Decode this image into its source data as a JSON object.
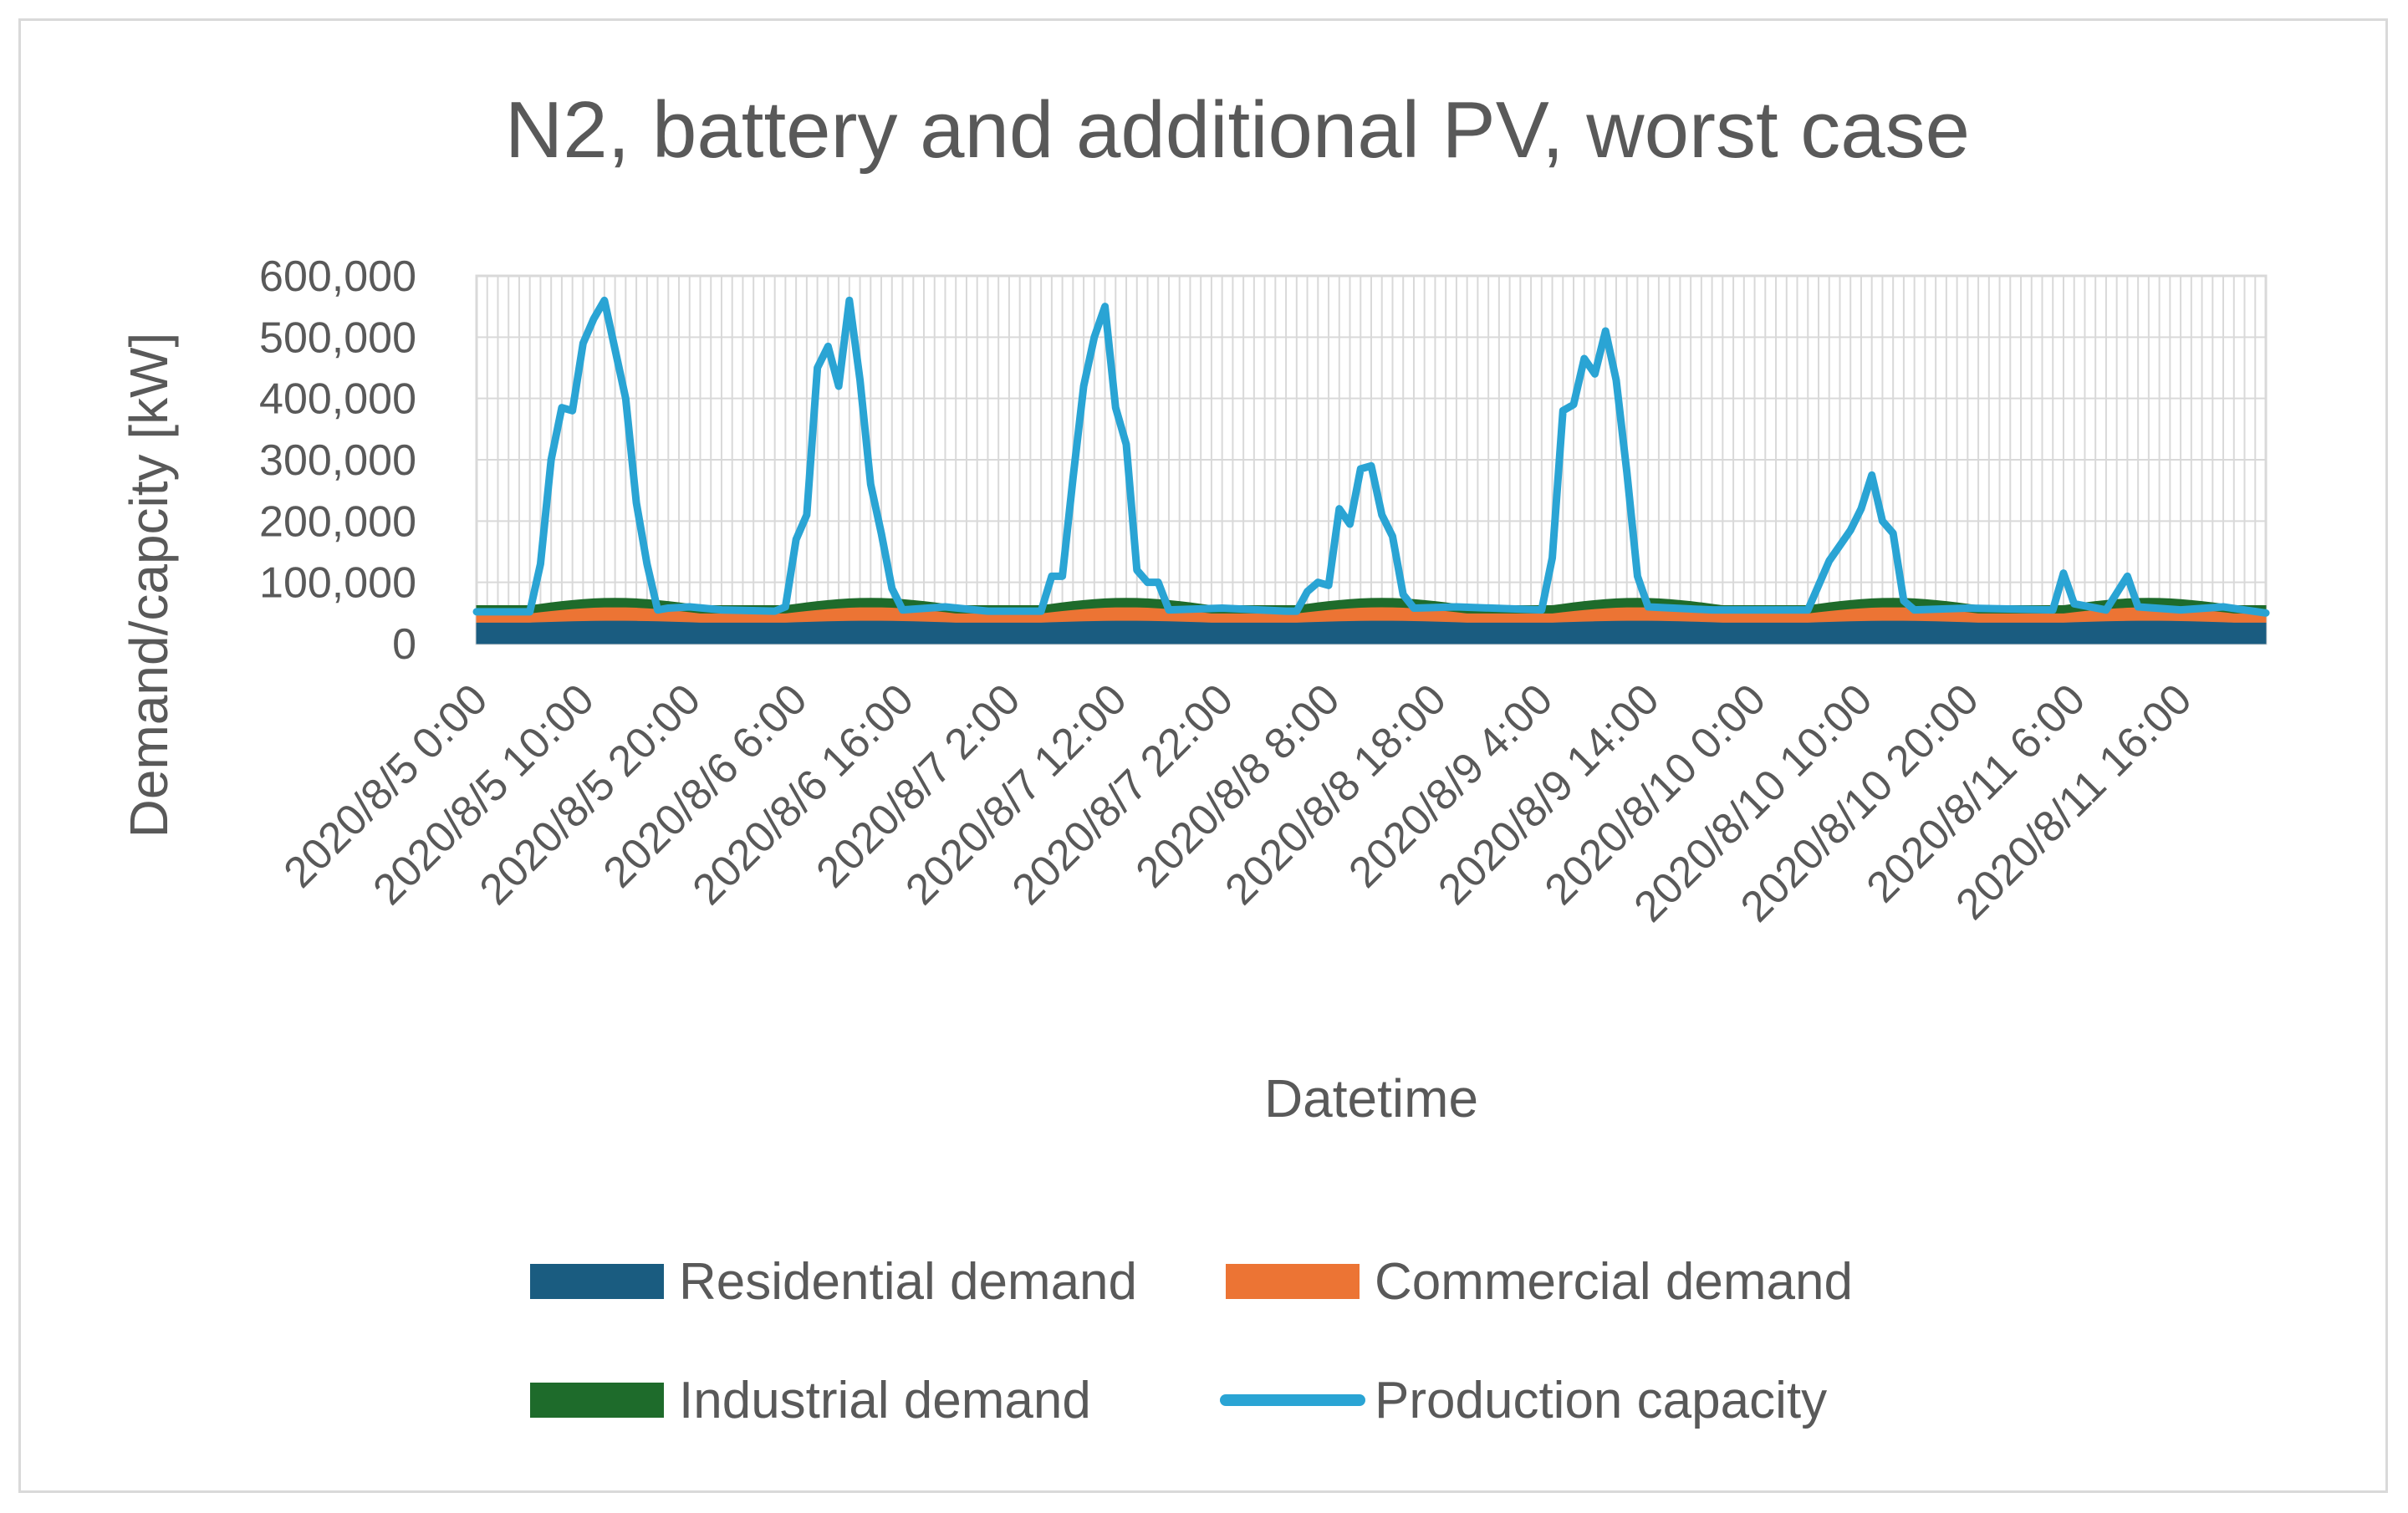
{
  "chart_data": {
    "type": "area",
    "title": "N2, battery and additional PV, worst case",
    "xlabel": "Datetime",
    "ylabel": "Demand/capcity [kW]",
    "ylim": [
      0,
      600000
    ],
    "yticks": [
      "0",
      "100,000",
      "200,000",
      "300,000",
      "400,000",
      "500,000",
      "600,000"
    ],
    "x_tick_labels": [
      "2020/8/5 0:00",
      "2020/8/5 10:00",
      "2020/8/5 20:00",
      "2020/8/6 6:00",
      "2020/8/6 16:00",
      "2020/8/7 2:00",
      "2020/8/7 12:00",
      "2020/8/7 22:00",
      "2020/8/8 8:00",
      "2020/8/8 18:00",
      "2020/8/9 4:00",
      "2020/8/9 14:00",
      "2020/8/10 0:00",
      "2020/8/10 10:00",
      "2020/8/10 20:00",
      "2020/8/11 6:00",
      "2020/8/11 16:00"
    ],
    "x_tick_step_hours": 10,
    "hours": 168,
    "series": [
      {
        "name": "Residential demand",
        "kind": "stacked-area",
        "color": "#1a5c80",
        "profile": {
          "night": 35000,
          "day": 38000
        }
      },
      {
        "name": "Commercial demand",
        "kind": "stacked-area",
        "color": "#ec7434",
        "profile": {
          "night": 15000,
          "day": 22000
        }
      },
      {
        "name": "Industrial demand",
        "kind": "stacked-area",
        "color": "#1e6b2b",
        "profile": {
          "night": 12000,
          "day": 14000
        }
      },
      {
        "name": "Production capacity",
        "kind": "line",
        "color": "#2aa4d4",
        "keypoints": [
          [
            0,
            52000
          ],
          [
            5,
            52000
          ],
          [
            6,
            130000
          ],
          [
            7,
            300000
          ],
          [
            8,
            385000
          ],
          [
            9,
            380000
          ],
          [
            10,
            490000
          ],
          [
            11,
            530000
          ],
          [
            12,
            560000
          ],
          [
            13,
            480000
          ],
          [
            14,
            400000
          ],
          [
            15,
            230000
          ],
          [
            16,
            130000
          ],
          [
            17,
            55000
          ],
          [
            18,
            58000
          ],
          [
            20,
            60000
          ],
          [
            23,
            55000
          ],
          [
            28,
            53000
          ],
          [
            29,
            60000
          ],
          [
            30,
            170000
          ],
          [
            31,
            210000
          ],
          [
            32,
            450000
          ],
          [
            33,
            485000
          ],
          [
            34,
            420000
          ],
          [
            35,
            560000
          ],
          [
            36,
            430000
          ],
          [
            37,
            260000
          ],
          [
            38,
            180000
          ],
          [
            39,
            90000
          ],
          [
            40,
            55000
          ],
          [
            44,
            60000
          ],
          [
            48,
            53000
          ],
          [
            53,
            53000
          ],
          [
            54,
            110000
          ],
          [
            55,
            110000
          ],
          [
            56,
            270000
          ],
          [
            57,
            420000
          ],
          [
            58,
            500000
          ],
          [
            59,
            550000
          ],
          [
            60,
            385000
          ],
          [
            61,
            325000
          ],
          [
            62,
            120000
          ],
          [
            63,
            100000
          ],
          [
            64,
            100000
          ],
          [
            65,
            55000
          ],
          [
            70,
            58000
          ],
          [
            76,
            53000
          ],
          [
            77,
            53000
          ],
          [
            78,
            85000
          ],
          [
            79,
            100000
          ],
          [
            80,
            95000
          ],
          [
            81,
            220000
          ],
          [
            82,
            195000
          ],
          [
            83,
            285000
          ],
          [
            84,
            290000
          ],
          [
            85,
            210000
          ],
          [
            86,
            175000
          ],
          [
            87,
            80000
          ],
          [
            88,
            58000
          ],
          [
            92,
            60000
          ],
          [
            100,
            55000
          ],
          [
            101,
            140000
          ],
          [
            102,
            380000
          ],
          [
            103,
            390000
          ],
          [
            104,
            465000
          ],
          [
            105,
            440000
          ],
          [
            106,
            510000
          ],
          [
            107,
            430000
          ],
          [
            108,
            280000
          ],
          [
            109,
            110000
          ],
          [
            110,
            60000
          ],
          [
            116,
            55000
          ],
          [
            125,
            55000
          ],
          [
            126,
            95000
          ],
          [
            127,
            135000
          ],
          [
            128,
            160000
          ],
          [
            129,
            185000
          ],
          [
            130,
            220000
          ],
          [
            131,
            275000
          ],
          [
            132,
            200000
          ],
          [
            133,
            180000
          ],
          [
            134,
            70000
          ],
          [
            135,
            55000
          ],
          [
            140,
            58000
          ],
          [
            148,
            55000
          ],
          [
            149,
            115000
          ],
          [
            150,
            65000
          ],
          [
            153,
            55000
          ],
          [
            155,
            110000
          ],
          [
            156,
            60000
          ],
          [
            160,
            55000
          ],
          [
            164,
            60000
          ],
          [
            168,
            50000
          ]
        ]
      }
    ],
    "legend": "bottom",
    "grid": true
  }
}
